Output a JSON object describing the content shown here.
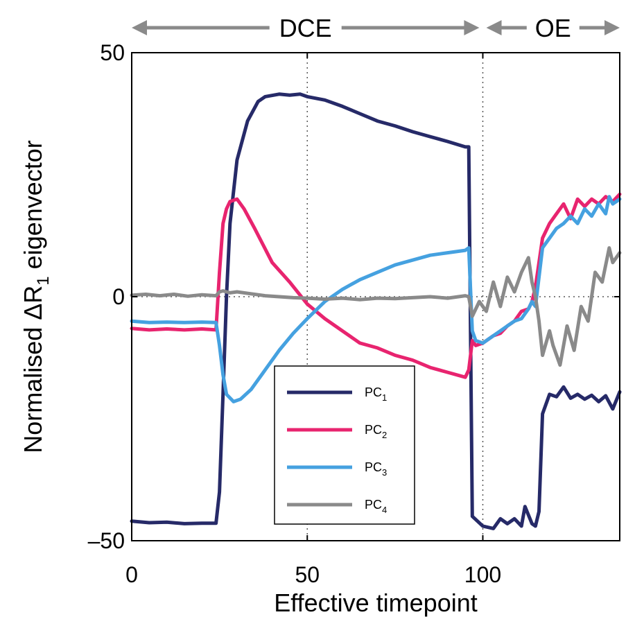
{
  "chart_data": {
    "type": "line",
    "xlabel": "Effective timepoint",
    "ylabel_main": "Normalised ΔR",
    "ylabel_sub": "1",
    "ylabel_tail": " eigenvector",
    "xlim": [
      0,
      139
    ],
    "ylim": [
      -50,
      50
    ],
    "x_ticks": [
      0,
      50,
      100
    ],
    "y_ticks": [
      50,
      0,
      -50
    ],
    "y_tick_labels": [
      "50",
      "0",
      "–50"
    ],
    "grid_x": [
      50,
      100
    ],
    "grid_y": [
      0
    ],
    "phases": [
      {
        "label": "DCE",
        "x_start": 0,
        "x_end": 99
      },
      {
        "label": "OE",
        "x_start": 101,
        "x_end": 139
      }
    ],
    "legend": [
      {
        "name": "PC",
        "sub": "1",
        "color": "#262a68"
      },
      {
        "name": "PC",
        "sub": "2",
        "color": "#e8246f"
      },
      {
        "name": "PC",
        "sub": "3",
        "color": "#45a1e0"
      },
      {
        "name": "PC",
        "sub": "4",
        "color": "#8a8a8a"
      }
    ],
    "series": [
      {
        "name": "PC1",
        "color": "#262a68",
        "x": [
          0,
          5,
          10,
          15,
          20,
          24,
          25,
          26,
          27,
          28,
          30,
          33,
          36,
          38,
          42,
          45,
          48,
          50,
          55,
          60,
          65,
          70,
          75,
          80,
          85,
          90,
          95,
          96,
          97,
          100,
          103,
          105,
          107,
          109,
          111,
          112,
          114,
          115,
          116,
          117,
          119,
          121,
          123,
          125,
          127,
          129,
          131,
          133,
          135,
          137,
          139
        ],
        "values": [
          -46,
          -46.3,
          -46.2,
          -46.5,
          -46.4,
          -46.4,
          -40,
          -20,
          0,
          15,
          28,
          36,
          40,
          41,
          41.5,
          41.3,
          41.5,
          41,
          40.3,
          39,
          37.5,
          36,
          35,
          33.8,
          32.8,
          31.8,
          30.7,
          30.7,
          -45,
          -47,
          -47.5,
          -45.5,
          -46.5,
          -45.5,
          -47,
          -43,
          -46.5,
          -47,
          -44,
          -24,
          -20,
          -20.5,
          -18.5,
          -20.8,
          -20,
          -21,
          -20.2,
          -21.5,
          -20.3,
          -23,
          -19.5
        ]
      },
      {
        "name": "PC2",
        "color": "#e8246f",
        "x": [
          0,
          5,
          10,
          15,
          20,
          24,
          25,
          26,
          27,
          28,
          30,
          32,
          35,
          40,
          45,
          50,
          55,
          60,
          65,
          70,
          75,
          80,
          85,
          90,
          95,
          96,
          97,
          98,
          100,
          103,
          105,
          107,
          109,
          111,
          113,
          114,
          115,
          117,
          119,
          121,
          123,
          125,
          127,
          129,
          131,
          133,
          135,
          137,
          139
        ],
        "values": [
          -6.5,
          -6.8,
          -6.6,
          -6.8,
          -6.6,
          -6.8,
          5,
          15,
          18,
          19.5,
          20,
          18,
          14,
          7,
          3,
          -1.5,
          -4.5,
          -7,
          -9.5,
          -10.5,
          -12,
          -13,
          -14.5,
          -15.5,
          -16.5,
          -15,
          -9,
          -10,
          -9.5,
          -8,
          -7.5,
          -6,
          -5,
          -3,
          -2.5,
          -1,
          2,
          12,
          15,
          17,
          19,
          16,
          20,
          18.5,
          20,
          19,
          20.5,
          19.5,
          21
        ]
      },
      {
        "name": "PC3",
        "color": "#45a1e0",
        "x": [
          0,
          5,
          10,
          15,
          20,
          24,
          25,
          26,
          27,
          29,
          31,
          34,
          38,
          42,
          46,
          50,
          55,
          60,
          65,
          70,
          75,
          80,
          85,
          90,
          95,
          96,
          97,
          98,
          100,
          102,
          105,
          107,
          109,
          111,
          113,
          114,
          115,
          117,
          119,
          121,
          123,
          125,
          127,
          129,
          131,
          133,
          135,
          136,
          137,
          139
        ],
        "values": [
          -5,
          -5.3,
          -5.2,
          -5.3,
          -5.2,
          -5.3,
          -10,
          -16,
          -20,
          -21.5,
          -21,
          -19,
          -15,
          -11,
          -7.5,
          -4.5,
          -1,
          1.5,
          3.5,
          5,
          6.5,
          7.5,
          8.5,
          9,
          9.5,
          10,
          -7,
          -9,
          -9.5,
          -8.5,
          -7,
          -6,
          -5,
          -4.5,
          -2.5,
          -1,
          -2,
          10,
          12,
          14,
          15,
          16.5,
          15,
          18,
          16.5,
          19,
          17,
          20.5,
          19,
          20
        ]
      },
      {
        "name": "PC4",
        "color": "#8a8a8a",
        "x": [
          0,
          4,
          8,
          12,
          16,
          20,
          24,
          25,
          26,
          28,
          30,
          34,
          38,
          42,
          46,
          50,
          55,
          60,
          65,
          70,
          75,
          80,
          85,
          90,
          95,
          96,
          97,
          99,
          101,
          103,
          105,
          107,
          109,
          111,
          113,
          114,
          115,
          116,
          117,
          119,
          120,
          122,
          124,
          126,
          128,
          130,
          132,
          134,
          136,
          137,
          139
        ],
        "values": [
          0.3,
          0.5,
          0.2,
          0.5,
          0.1,
          0.4,
          0.2,
          1,
          1.2,
          0.8,
          1,
          0.6,
          0.2,
          0,
          -0.2,
          -0.3,
          -0.5,
          -0.3,
          -0.6,
          -0.3,
          -0.4,
          -0.2,
          0,
          -0.3,
          0.2,
          0,
          -4,
          -1,
          -3,
          3,
          -2,
          4,
          1,
          5,
          8,
          3,
          0,
          -5,
          -12,
          -7,
          -10,
          -14,
          -6,
          -11,
          -2,
          -5,
          5,
          3,
          10,
          7,
          9
        ]
      }
    ]
  }
}
